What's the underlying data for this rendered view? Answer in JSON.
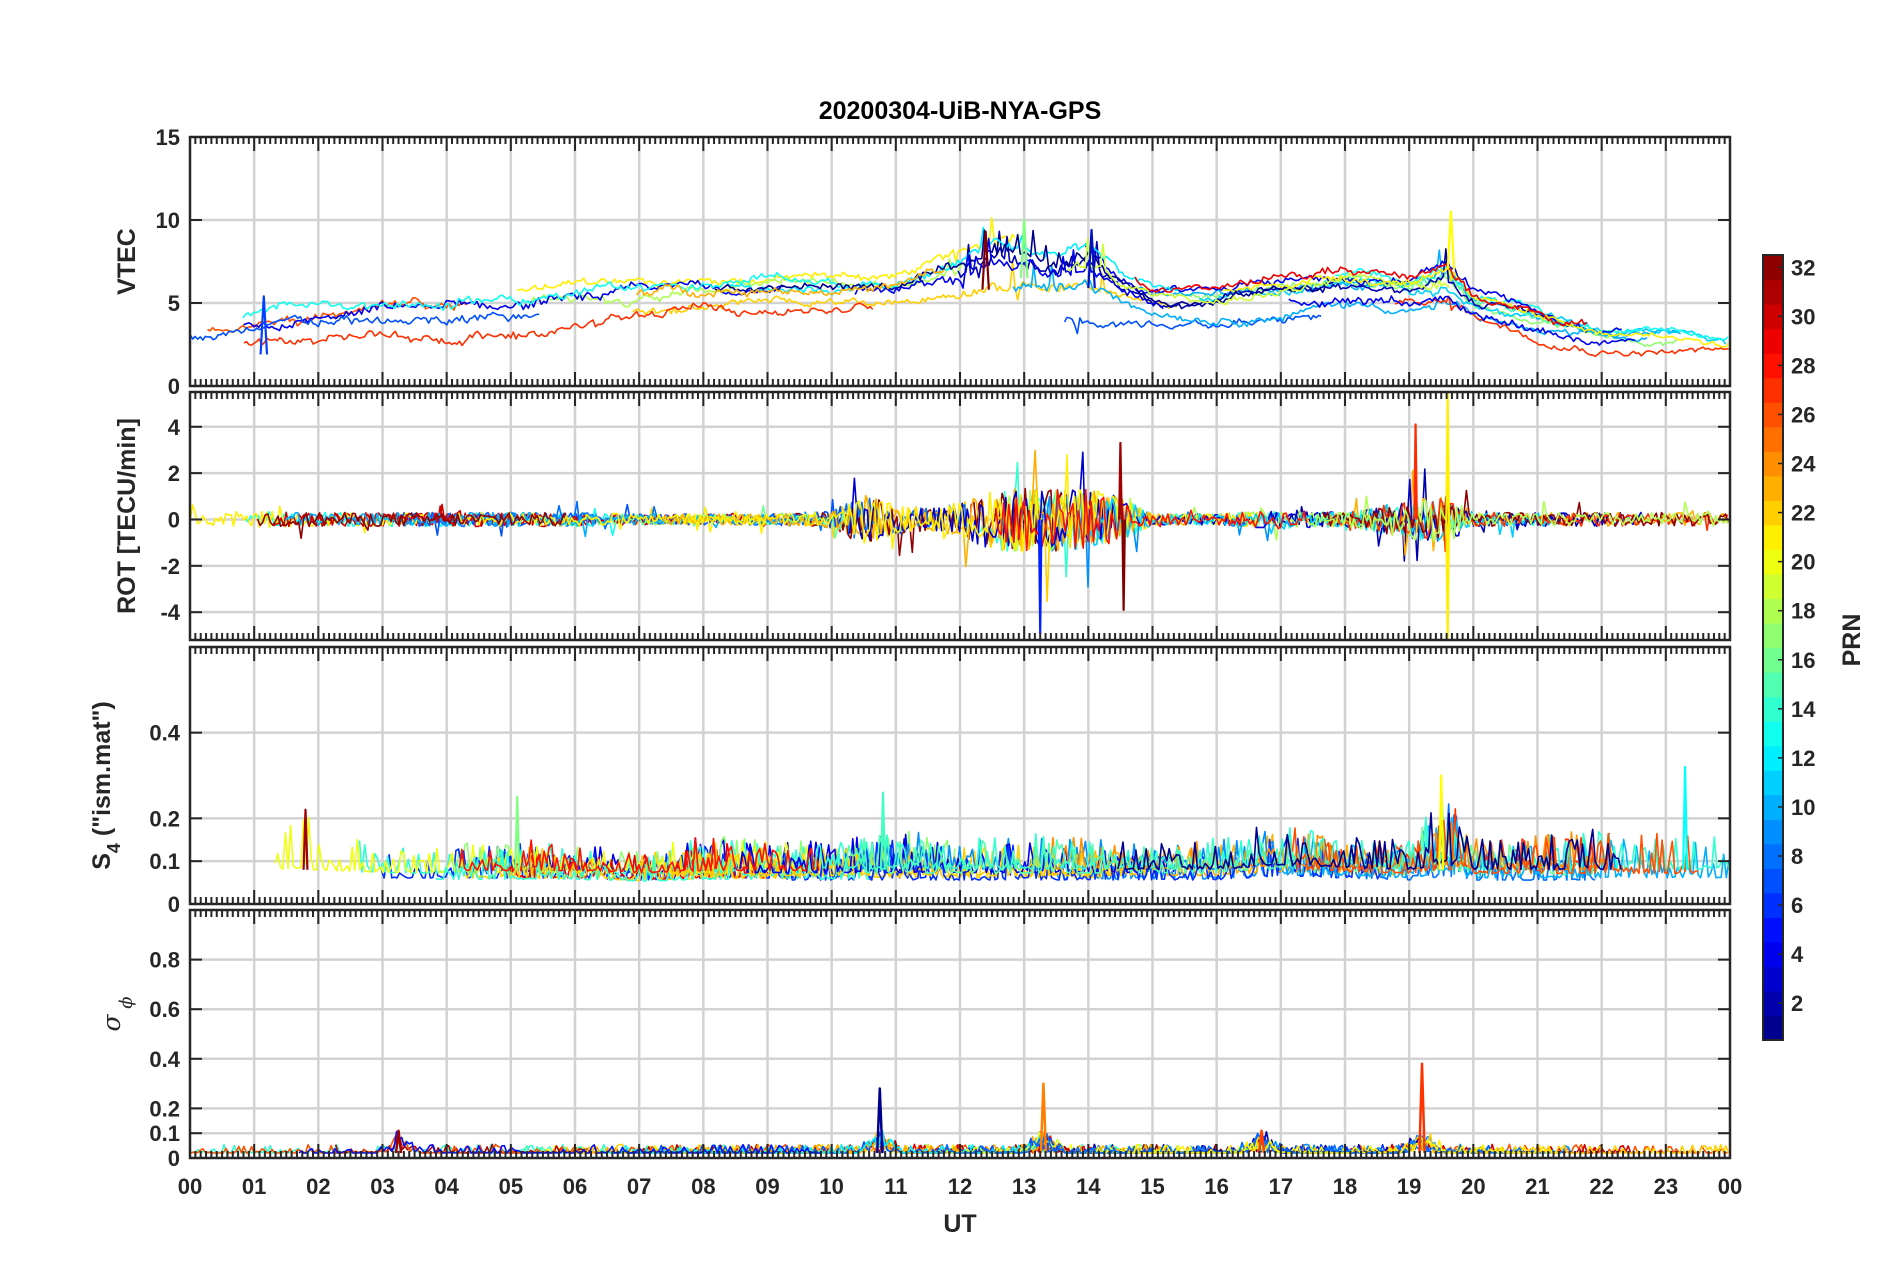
{
  "chart_data": {
    "type": "line",
    "title": "20200304-UiB-NYA-GPS",
    "xlabel": "UT",
    "x_tick_labels": [
      "00",
      "01",
      "02",
      "03",
      "04",
      "05",
      "06",
      "07",
      "08",
      "09",
      "10",
      "11",
      "12",
      "13",
      "14",
      "15",
      "16",
      "17",
      "18",
      "19",
      "20",
      "21",
      "22",
      "23",
      "00"
    ],
    "xlim_hours": [
      0,
      24
    ],
    "grid": true,
    "colorbar": {
      "label": "PRN",
      "range": [
        1,
        32
      ],
      "colormap": "jet",
      "tick_labels": [
        "2",
        "4",
        "6",
        "8",
        "10",
        "12",
        "14",
        "16",
        "18",
        "20",
        "22",
        "24",
        "26",
        "28",
        "30",
        "32"
      ],
      "placement": "right"
    },
    "panels": [
      {
        "name": "vtec",
        "ylabel": "VTEC",
        "ylim": [
          0,
          15
        ],
        "y_ticks": [
          0,
          5,
          10,
          15
        ],
        "y_tick_labels": [
          "0",
          "5",
          "10",
          "15"
        ],
        "envelope": {
          "x_hours": [
            0,
            1,
            2,
            3,
            4,
            5,
            6,
            7,
            8,
            9,
            10,
            11,
            12,
            12.5,
            13,
            13.5,
            14,
            14.5,
            15,
            16,
            17,
            18,
            19,
            19.6,
            20,
            21,
            22,
            23,
            24
          ],
          "y_center": [
            3,
            3.1,
            3.5,
            3.7,
            3.6,
            3.9,
            4.3,
            4.7,
            5,
            5.2,
            5.3,
            5.3,
            5.8,
            6.5,
            6.5,
            6.2,
            6.5,
            5.5,
            5,
            4.8,
            5.2,
            5.6,
            5.3,
            5.6,
            4.5,
            3.5,
            2.8,
            2.6,
            2.3
          ],
          "y_spread": [
            1.5,
            1.8,
            2,
            2.2,
            2.3,
            2.2,
            2.1,
            1.9,
            1.8,
            1.8,
            1.7,
            1.7,
            2.6,
            3.3,
            3,
            2.6,
            3.1,
            1.8,
            1.3,
            1.3,
            1.7,
            1.8,
            1.8,
            2.6,
            1.7,
            1.5,
            0.9,
            0.9,
            0.8
          ]
        },
        "peak_values": [
          5.4,
          9.3,
          10,
          9.4,
          10.5
        ]
      },
      {
        "name": "rot",
        "ylabel": "ROT [TECU/min]",
        "ylim": [
          -5.2,
          5.5
        ],
        "y_ticks": [
          -4,
          -2,
          0,
          2,
          4
        ],
        "y_tick_labels": [
          "-4",
          "-2",
          "0",
          "2",
          "4"
        ],
        "envelope": {
          "x_hours": [
            0,
            1,
            2,
            3,
            4,
            5,
            6,
            7,
            8,
            9,
            10,
            10.5,
            11,
            11.5,
            12,
            12.5,
            13,
            13.5,
            14,
            14.5,
            15,
            16,
            17,
            18,
            19,
            19.6,
            20,
            21,
            22,
            23,
            24
          ],
          "amplitude": [
            0.5,
            0.6,
            0.5,
            0.5,
            0.5,
            0.5,
            0.5,
            0.4,
            0.4,
            0.4,
            0.6,
            1.8,
            1.1,
            0.8,
            1.3,
            2.2,
            2.4,
            2.3,
            2.3,
            1.6,
            0.4,
            0.4,
            0.7,
            0.5,
            1.4,
            1.7,
            0.5,
            0.5,
            0.5,
            0.5,
            0.5
          ]
        },
        "extremes": [
          4.1,
          -4.9,
          5.5,
          -5.1,
          3.3,
          -3.9
        ]
      },
      {
        "name": "s4",
        "ylabel": "S",
        "ylabel_subscript": "4",
        "ylabel_suffix": "(\"ism.mat\")",
        "ylim": [
          0,
          0.6
        ],
        "y_ticks": [
          0,
          0.1,
          0.2,
          0.4
        ],
        "y_tick_labels": [
          "0",
          "0.1",
          "0.2",
          "0.4"
        ],
        "envelope": {
          "x_hours": [
            0,
            1,
            1.6,
            2,
            3,
            4,
            5,
            6,
            7,
            8,
            9,
            10,
            11,
            12,
            13,
            14,
            15,
            16,
            17,
            18,
            19,
            19.6,
            20,
            21,
            22,
            23,
            24
          ],
          "baseline": [
            0.07,
            0.07,
            0.08,
            0.075,
            0.07,
            0.07,
            0.07,
            0.07,
            0.065,
            0.07,
            0.07,
            0.07,
            0.07,
            0.07,
            0.07,
            0.07,
            0.07,
            0.07,
            0.08,
            0.075,
            0.07,
            0.08,
            0.07,
            0.07,
            0.07,
            0.07,
            0.07
          ],
          "amplitude": [
            0.05,
            0.05,
            0.12,
            0.1,
            0.05,
            0.06,
            0.07,
            0.05,
            0.05,
            0.07,
            0.06,
            0.06,
            0.08,
            0.06,
            0.07,
            0.06,
            0.05,
            0.06,
            0.09,
            0.06,
            0.06,
            0.15,
            0.06,
            0.07,
            0.08,
            0.08,
            0.06
          ]
        },
        "peak_values": [
          0.22,
          0.25,
          0.26,
          0.3,
          0.32
        ]
      },
      {
        "name": "sigma_phi",
        "ylabel": "σ",
        "ylabel_subscript": "ϕ",
        "ylim": [
          0,
          1
        ],
        "y_ticks": [
          0,
          0.1,
          0.2,
          0.4,
          0.6,
          0.8
        ],
        "y_tick_labels": [
          "0",
          "0.1",
          "0.2",
          "0.4",
          "0.6",
          "0.8"
        ],
        "baseline": 0.02,
        "spikes": [
          {
            "x_hours": 3.25,
            "value": 0.11
          },
          {
            "x_hours": 10.75,
            "value": 0.28
          },
          {
            "x_hours": 13.3,
            "value": 0.3
          },
          {
            "x_hours": 16.7,
            "value": 0.11
          },
          {
            "x_hours": 19.2,
            "value": 0.38
          }
        ]
      }
    ]
  }
}
